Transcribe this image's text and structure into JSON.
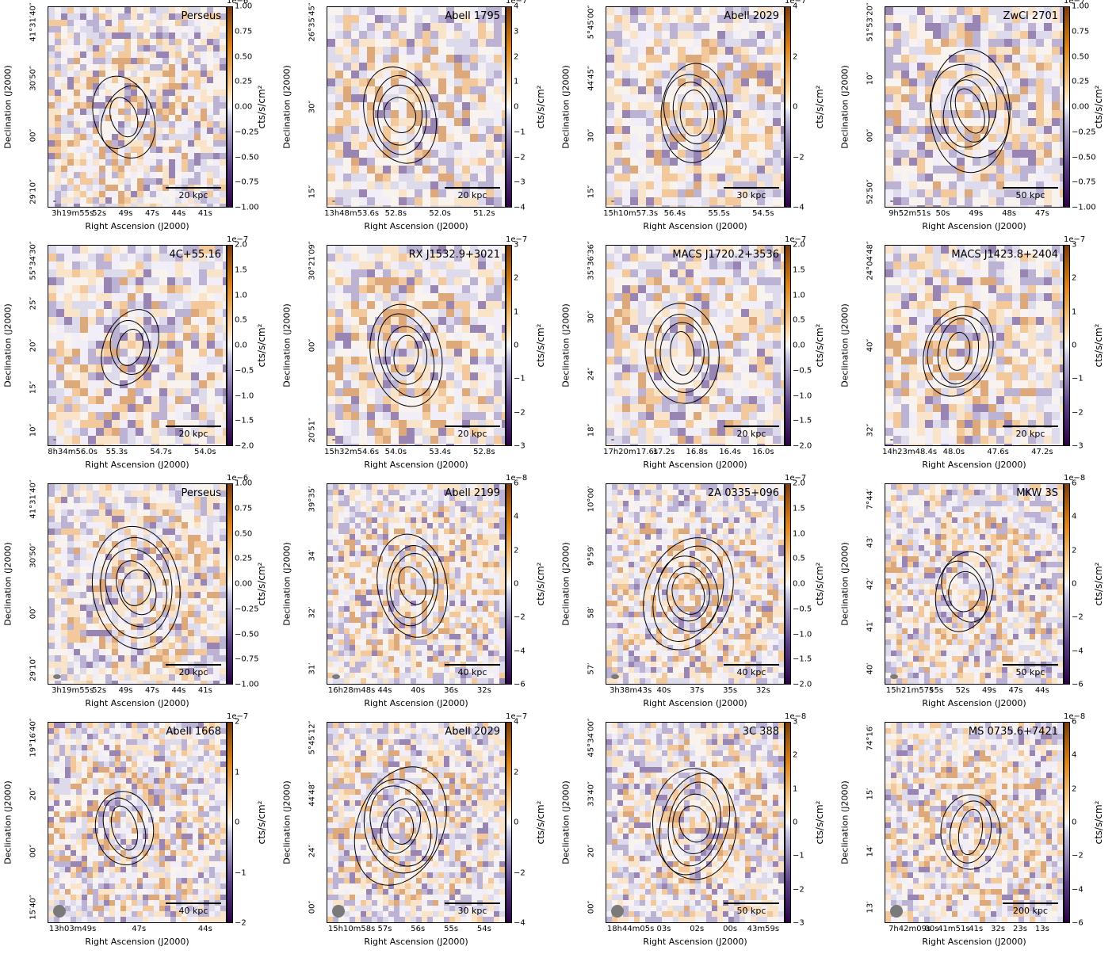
{
  "common": {
    "xlabel": "Right Ascension (J2000)",
    "ylabel": "Declination (J2000)",
    "clabel": "cts/s/cm²",
    "colormap": [
      "#2d004b",
      "#f7f7f7",
      "#7f3b08"
    ]
  },
  "panels": [
    {
      "title": "Perseus",
      "scale": "20 kpc",
      "mult": "1e−6",
      "cticks": [
        "1.00",
        "0.75",
        "0.50",
        "0.25",
        "0.00",
        "−0.25",
        "−0.50",
        "−0.75",
        "−1.00"
      ],
      "xticks": [
        "3h19m55s",
        "52s",
        "49s",
        "47s",
        "44s",
        "41s"
      ],
      "yticks": [
        "41°31′40″",
        "30′50″",
        "00″",
        "29′10″"
      ]
    },
    {
      "title": "Abell 1795",
      "scale": "20 kpc",
      "mult": "1e−7",
      "cticks": [
        "4",
        "3",
        "2",
        "1",
        "0",
        "−1",
        "−2",
        "−3",
        "−4"
      ],
      "xticks": [
        "13h48m53.6s",
        "52.8s",
        "52.0s",
        "51.2s"
      ],
      "yticks": [
        "26°35′45″",
        "30″",
        "15″"
      ]
    },
    {
      "title": "Abell 2029",
      "scale": "30 kpc",
      "mult": "1e−7",
      "cticks": [
        "4",
        "2",
        "0",
        "−2",
        "−4"
      ],
      "xticks": [
        "15h10m57.3s",
        "56.4s",
        "55.5s",
        "54.5s"
      ],
      "yticks": [
        "5°45′00″",
        "44′45″",
        "30″",
        "15″"
      ]
    },
    {
      "title": "ZwCl 2701",
      "scale": "50 kpc",
      "mult": "1e−7",
      "cticks": [
        "1.00",
        "0.75",
        "0.50",
        "0.25",
        "0.00",
        "−0.25",
        "−0.50",
        "−0.75",
        "−1.00"
      ],
      "xticks": [
        "9h52m51s",
        "50s",
        "49s",
        "48s",
        "47s"
      ],
      "yticks": [
        "51°53′20″",
        "10″",
        "00″",
        "52′50″"
      ]
    },
    {
      "title": "4C+55.16",
      "scale": "20 kpc",
      "mult": "1e−7",
      "cticks": [
        "2.0",
        "1.5",
        "1.0",
        "0.5",
        "0.0",
        "−0.5",
        "−1.0",
        "−1.5",
        "−2.0"
      ],
      "xticks": [
        "8h34m56.0s",
        "55.3s",
        "54.7s",
        "54.0s"
      ],
      "yticks": [
        "55°34′30″",
        "25″",
        "20″",
        "15″",
        "10″"
      ]
    },
    {
      "title": "RX J1532.9+3021",
      "scale": "20 kpc",
      "mult": "1e−7",
      "cticks": [
        "3",
        "2",
        "1",
        "0",
        "−1",
        "−2",
        "−3"
      ],
      "xticks": [
        "15h32m54.6s",
        "54.0s",
        "53.4s",
        "52.8s"
      ],
      "yticks": [
        "30°21′09″",
        "00″",
        "20′51″"
      ]
    },
    {
      "title": "MACS J1720.2+3536",
      "scale": "20 kpc",
      "mult": "1e−7",
      "cticks": [
        "2.0",
        "1.5",
        "1.0",
        "0.5",
        "0.0",
        "−0.5",
        "−1.0",
        "−1.5",
        "−2.0"
      ],
      "xticks": [
        "17h20m17.6s",
        "17.2s",
        "16.8s",
        "16.4s",
        "16.0s"
      ],
      "yticks": [
        "35°36′36″",
        "30″",
        "24″",
        "18″"
      ]
    },
    {
      "title": "MACS J1423.8+2404",
      "scale": "20 kpc",
      "mult": "1e−7",
      "cticks": [
        "3",
        "2",
        "1",
        "0",
        "−1",
        "−2",
        "−3"
      ],
      "xticks": [
        "14h23m48.4s",
        "48.0s",
        "47.6s",
        "47.2s"
      ],
      "yticks": [
        "24°04′48″",
        "40″",
        "32″"
      ]
    },
    {
      "title": "Perseus",
      "scale": "20 kpc",
      "mult": "1e−6",
      "cticks": [
        "1.00",
        "0.75",
        "0.50",
        "0.25",
        "0.00",
        "−0.25",
        "−0.50",
        "−0.75",
        "−1.00"
      ],
      "xticks": [
        "3h19m55s",
        "52s",
        "49s",
        "47s",
        "44s",
        "41s"
      ],
      "yticks": [
        "41°31′40″",
        "30′50″",
        "00″",
        "29′10″"
      ]
    },
    {
      "title": "Abell 2199",
      "scale": "40 kpc",
      "mult": "1e−8",
      "cticks": [
        "6",
        "4",
        "2",
        "0",
        "−2",
        "−4",
        "−6"
      ],
      "xticks": [
        "16h28m48s",
        "44s",
        "40s",
        "36s",
        "32s"
      ],
      "yticks": [
        "39°35′",
        "34′",
        "32′",
        "31′"
      ]
    },
    {
      "title": "2A 0335+096",
      "scale": "40 kpc",
      "mult": "1e−7",
      "cticks": [
        "2.0",
        "1.5",
        "1.0",
        "0.5",
        "0.0",
        "−0.5",
        "−1.0",
        "−1.5",
        "−2.0"
      ],
      "xticks": [
        "3h38m43s",
        "40s",
        "37s",
        "35s",
        "32s"
      ],
      "yticks": [
        "10°00′",
        "9°59′",
        "58′",
        "57′"
      ]
    },
    {
      "title": "MKW 3S",
      "scale": "50 kpc",
      "mult": "1e−8",
      "cticks": [
        "6",
        "4",
        "2",
        "0",
        "−2",
        "−4",
        "−6"
      ],
      "xticks": [
        "15h21m57s",
        "55s",
        "52s",
        "49s",
        "47s",
        "44s"
      ],
      "yticks": [
        "7°44′",
        "43′",
        "42′",
        "41′",
        "40′"
      ]
    },
    {
      "title": "Abell 1668",
      "scale": "40 kpc",
      "mult": "1e−7",
      "cticks": [
        "2",
        "1",
        "0",
        "−1",
        "−2"
      ],
      "xticks": [
        "13h03m49s",
        "47s",
        "44s"
      ],
      "yticks": [
        "19°16′40″",
        "20″",
        "00″",
        "15′40″"
      ]
    },
    {
      "title": "Abell 2029",
      "scale": "30 kpc",
      "mult": "1e−7",
      "cticks": [
        "4",
        "2",
        "0",
        "−2",
        "−4"
      ],
      "xticks": [
        "15h10m58s",
        "57s",
        "56s",
        "55s",
        "54s"
      ],
      "yticks": [
        "5°45′12″",
        "44′48″",
        "24″",
        "00″"
      ]
    },
    {
      "title": "3C 388",
      "scale": "50 kpc",
      "mult": "1e−8",
      "cticks": [
        "3",
        "2",
        "1",
        "0",
        "−1",
        "−2",
        "−3"
      ],
      "xticks": [
        "18h44m05s",
        "03s",
        "02s",
        "00s",
        "43m59s"
      ],
      "yticks": [
        "45°34′00″",
        "33′40″",
        "20″",
        "00″"
      ]
    },
    {
      "title": "MS 0735.6+7421",
      "scale": "200 kpc",
      "mult": "1e−8",
      "cticks": [
        "6",
        "4",
        "2",
        "0",
        "−2",
        "−4",
        "−6"
      ],
      "xticks": [
        "7h42m09s",
        "00s",
        "41m51s",
        "41s",
        "32s",
        "23s",
        "13s"
      ],
      "yticks": [
        "74°16′",
        "15′",
        "14′",
        "13′"
      ]
    }
  ]
}
